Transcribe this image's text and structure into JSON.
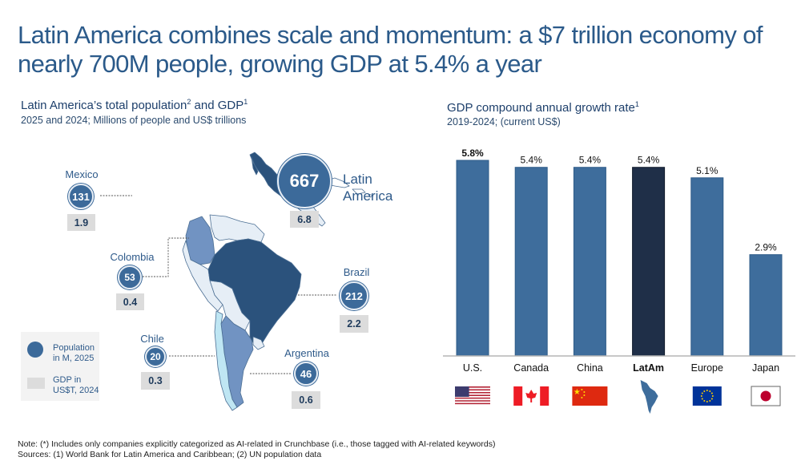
{
  "title": "Latin America combines scale and momentum: a $7 trillion economy of nearly 700M people, growing GDP at 5.4% a year",
  "left_panel": {
    "title": "Latin America’s total population",
    "title_sup1": "2",
    "title_mid": " and GDP",
    "title_sup2": "1",
    "subtitle": "2025 and 2024; Millions of people and US$ trillions",
    "total": {
      "label_line1": "Latin",
      "label_line2": "America",
      "population": "667",
      "gdp": "6.8"
    },
    "countries": [
      {
        "name": "Mexico",
        "population": "131",
        "gdp": "1.9"
      },
      {
        "name": "Colombia",
        "population": "53",
        "gdp": "0.4"
      },
      {
        "name": "Brazil",
        "population": "212",
        "gdp": "2.2"
      },
      {
        "name": "Chile",
        "population": "20",
        "gdp": "0.3"
      },
      {
        "name": "Argentina",
        "population": "46",
        "gdp": "0.6"
      }
    ],
    "legend": {
      "population_line1": "Population",
      "population_line2": "in M, 2025",
      "gdp_line1": "GDP in",
      "gdp_line2": "US$T, 2024"
    },
    "colors": {
      "bubble": "#3c6a9a",
      "dark_country": "#2b527c",
      "mid_country": "#7193c2",
      "light_country": "#e6eef6",
      "chile": "#bfe6f3",
      "gdp_box": "#dcdcdc"
    }
  },
  "right_panel": {
    "title": "GDP compound annual growth rate",
    "title_sup": "1",
    "subtitle": "2019-2024; (current US$)"
  },
  "chart_data": {
    "type": "bar",
    "title": "GDP compound annual growth rate",
    "subtitle": "2019-2024; (current US$)",
    "xlabel": "",
    "ylabel": "",
    "categories": [
      "U.S.",
      "Canada",
      "China",
      "LatAm",
      "Europe",
      "Japan"
    ],
    "values": [
      5.8,
      5.4,
      5.4,
      5.4,
      5.1,
      2.9
    ],
    "value_labels": [
      "5.8%",
      "5.4%",
      "5.4%",
      "5.4%",
      "5.1%",
      "2.9%"
    ],
    "highlight": "LatAm",
    "flags": [
      "us-flag",
      "canada-flag",
      "china-flag",
      "latam-map",
      "eu-flag",
      "japan-flag"
    ],
    "colors": {
      "default": "#3e6d9c",
      "highlight": "#1f2f48"
    },
    "ylim": [
      0,
      6
    ],
    "grid": false,
    "legend": "none"
  },
  "footer": {
    "note": "Note: (*) Includes only companies explicitly categorized as AI-related in Crunchbase (i.e., those tagged with AI-related keywords)",
    "sources": "Sources: (1) World Bank for Latin America and Caribbean; (2) UN population data"
  }
}
